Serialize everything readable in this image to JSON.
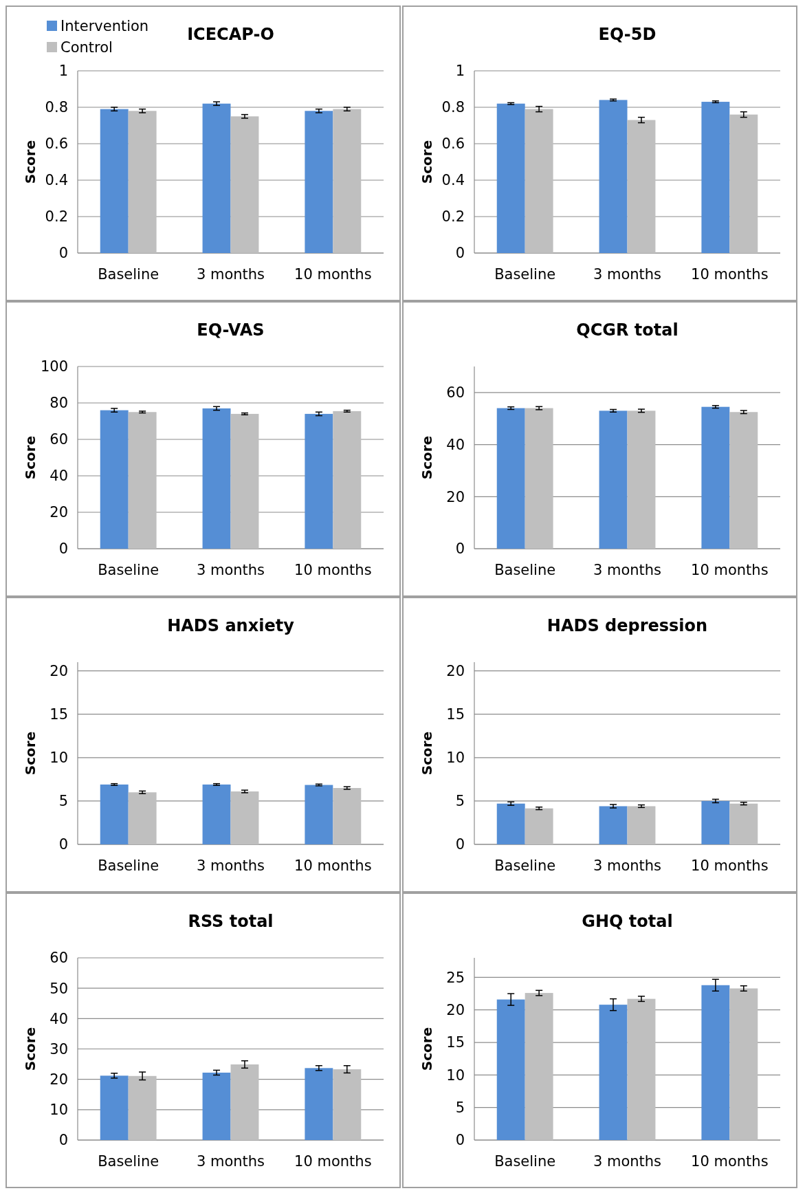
{
  "chart_data": [
    {
      "type": "bar",
      "title": "ICECAP-O",
      "ylabel": "Score",
      "categories": [
        "Baseline",
        "3 months",
        "10 months"
      ],
      "ylim": [
        0,
        1
      ],
      "yticks": [
        0,
        0.2,
        0.4,
        0.6,
        0.8,
        1
      ],
      "grid": "y",
      "legend": "top left",
      "series": [
        {
          "name": "Intervention",
          "color": "#558ed5",
          "values": [
            0.79,
            0.82,
            0.78
          ],
          "errors": [
            0.01,
            0.01,
            0.01
          ]
        },
        {
          "name": "Control",
          "color": "#bfbfbf",
          "values": [
            0.78,
            0.75,
            0.79
          ],
          "errors": [
            0.01,
            0.01,
            0.01
          ]
        }
      ]
    },
    {
      "type": "bar",
      "title": "EQ-5D",
      "ylabel": "Score",
      "categories": [
        "Baseline",
        "3 months",
        "10 months"
      ],
      "ylim": [
        0,
        1
      ],
      "yticks": [
        0,
        0.2,
        0.4,
        0.6,
        0.8,
        1
      ],
      "grid": "y",
      "series": [
        {
          "color": "#558ed5",
          "values": [
            0.82,
            0.84,
            0.83
          ],
          "errors": [
            0.005,
            0.005,
            0.005
          ]
        },
        {
          "color": "#bfbfbf",
          "values": [
            0.79,
            0.73,
            0.76
          ],
          "errors": [
            0.015,
            0.015,
            0.015
          ]
        }
      ]
    },
    {
      "type": "bar",
      "title": "EQ-VAS",
      "ylabel": "Score",
      "categories": [
        "Baseline",
        "3 months",
        "10 months"
      ],
      "ylim": [
        0,
        100
      ],
      "yticks": [
        0,
        20,
        40,
        60,
        80,
        100
      ],
      "grid": "y",
      "series": [
        {
          "color": "#558ed5",
          "values": [
            76,
            77,
            74
          ],
          "errors": [
            1,
            1,
            1
          ]
        },
        {
          "color": "#bfbfbf",
          "values": [
            75,
            74,
            75.5
          ],
          "errors": [
            0.5,
            0.5,
            0.5
          ]
        }
      ]
    },
    {
      "type": "bar",
      "title": "QCGR total",
      "ylabel": "Score",
      "categories": [
        "Baseline",
        "3 months",
        "10 months"
      ],
      "ylim": [
        0,
        70
      ],
      "yticks": [
        0,
        20,
        40,
        60
      ],
      "grid": "y",
      "series": [
        {
          "color": "#558ed5",
          "values": [
            54,
            53,
            54.5
          ],
          "errors": [
            0.5,
            0.5,
            0.5
          ]
        },
        {
          "color": "#bfbfbf",
          "values": [
            54,
            53,
            52.5
          ],
          "errors": [
            0.6,
            0.6,
            0.6
          ]
        }
      ]
    },
    {
      "type": "bar",
      "title": "HADS anxiety",
      "ylabel": "Score",
      "categories": [
        "Baseline",
        "3 months",
        "10 months"
      ],
      "ylim": [
        0,
        21
      ],
      "yticks": [
        0,
        5,
        10,
        15,
        20
      ],
      "grid": "y",
      "series": [
        {
          "color": "#558ed5",
          "values": [
            6.9,
            6.9,
            6.85
          ],
          "errors": [
            0.1,
            0.1,
            0.1
          ]
        },
        {
          "color": "#bfbfbf",
          "values": [
            6.0,
            6.1,
            6.5
          ],
          "errors": [
            0.15,
            0.15,
            0.15
          ]
        }
      ]
    },
    {
      "type": "bar",
      "title": "HADS depression",
      "ylabel": "Score",
      "categories": [
        "Baseline",
        "3 months",
        "10 months"
      ],
      "ylim": [
        0,
        21
      ],
      "yticks": [
        0,
        5,
        10,
        15,
        20
      ],
      "grid": "y",
      "series": [
        {
          "color": "#558ed5",
          "values": [
            4.7,
            4.4,
            5.0
          ],
          "errors": [
            0.2,
            0.2,
            0.2
          ]
        },
        {
          "color": "#bfbfbf",
          "values": [
            4.15,
            4.4,
            4.7
          ],
          "errors": [
            0.15,
            0.15,
            0.15
          ]
        }
      ]
    },
    {
      "type": "bar",
      "title": "RSS total",
      "ylabel": "Score",
      "categories": [
        "Baseline",
        "3 months",
        "10 months"
      ],
      "ylim": [
        0,
        60
      ],
      "yticks": [
        0,
        10,
        20,
        30,
        40,
        50,
        60
      ],
      "grid": "y",
      "series": [
        {
          "color": "#558ed5",
          "values": [
            21.2,
            22.2,
            23.7
          ],
          "errors": [
            0.8,
            0.8,
            0.8
          ]
        },
        {
          "color": "#bfbfbf",
          "values": [
            21.1,
            24.9,
            23.3
          ],
          "errors": [
            1.3,
            1.2,
            1.2
          ]
        }
      ]
    },
    {
      "type": "bar",
      "title": "GHQ total",
      "ylabel": "Score",
      "categories": [
        "Baseline",
        "3 months",
        "10 months"
      ],
      "ylim": [
        0,
        28
      ],
      "yticks": [
        0,
        5,
        10,
        15,
        20,
        25
      ],
      "grid": "y",
      "series": [
        {
          "color": "#558ed5",
          "values": [
            21.6,
            20.8,
            23.8
          ],
          "errors": [
            0.9,
            0.9,
            0.9
          ]
        },
        {
          "color": "#bfbfbf",
          "values": [
            22.6,
            21.7,
            23.3
          ],
          "errors": [
            0.4,
            0.4,
            0.4
          ]
        }
      ]
    }
  ]
}
